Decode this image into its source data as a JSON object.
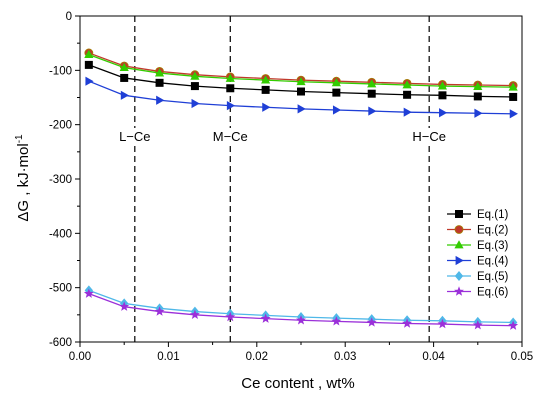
{
  "chart_data": {
    "type": "line",
    "title": "",
    "xlabel": "Ce content , wt%",
    "ylabel": "ΔG , kJ·mol",
    "ylabel_sup": "-1",
    "xlim": [
      0.0,
      0.05
    ],
    "ylim": [
      -600,
      0
    ],
    "xticks": [
      0.0,
      0.01,
      0.02,
      0.03,
      0.04,
      0.05
    ],
    "xtick_labels": [
      "0.00",
      "0.01",
      "0.02",
      "0.03",
      "0.04",
      "0.05"
    ],
    "yticks": [
      0,
      -100,
      -200,
      -300,
      -400,
      -500,
      -600
    ],
    "ytick_labels": [
      "0",
      "-100",
      "-200",
      "-300",
      "-400",
      "-500",
      "-600"
    ],
    "grid": false,
    "legend_position": "right",
    "x": [
      0.001,
      0.005,
      0.009,
      0.013,
      0.017,
      0.021,
      0.025,
      0.029,
      0.033,
      0.037,
      0.041,
      0.045,
      0.049
    ],
    "series": [
      {
        "name": "Eq.(1)",
        "color": "#000000",
        "marker": "square",
        "values": [
          -90,
          -114,
          -123,
          -129,
          -133,
          -136,
          -139,
          -141,
          -143,
          -145,
          -146,
          -148,
          -149
        ]
      },
      {
        "name": "Eq.(2)",
        "color": "#c0392b",
        "marker": "circle",
        "values": [
          -68,
          -92,
          -102,
          -108,
          -112,
          -115,
          -118,
          -120,
          -122,
          -124,
          -126,
          -127,
          -128
        ]
      },
      {
        "name": "Eq.(3)",
        "color": "#33cc00",
        "marker": "triangle-up",
        "values": [
          -71,
          -95,
          -105,
          -111,
          -115,
          -118,
          -121,
          -123,
          -125,
          -127,
          -129,
          -130,
          -131
        ]
      },
      {
        "name": "Eq.(4)",
        "color": "#1f3fd6",
        "marker": "triangle-right",
        "values": [
          -120,
          -146,
          -155,
          -161,
          -165,
          -168,
          -171,
          -173,
          -175,
          -177,
          -178,
          -179,
          -180
        ]
      },
      {
        "name": "Eq.(5)",
        "color": "#4fb8e8",
        "marker": "diamond",
        "values": [
          -505,
          -529,
          -538,
          -544,
          -548,
          -551,
          -554,
          -556,
          -558,
          -560,
          -561,
          -563,
          -564
        ]
      },
      {
        "name": "Eq.(6)",
        "color": "#9b30d9",
        "marker": "star",
        "values": [
          -511,
          -535,
          -544,
          -550,
          -554,
          -557,
          -560,
          -562,
          -564,
          -566,
          -567,
          -569,
          -570
        ]
      }
    ],
    "vlines": [
      {
        "x": 0.0062,
        "label": "L−Ce"
      },
      {
        "x": 0.017,
        "label": "M−Ce"
      },
      {
        "x": 0.0395,
        "label": "H−Ce"
      }
    ]
  }
}
